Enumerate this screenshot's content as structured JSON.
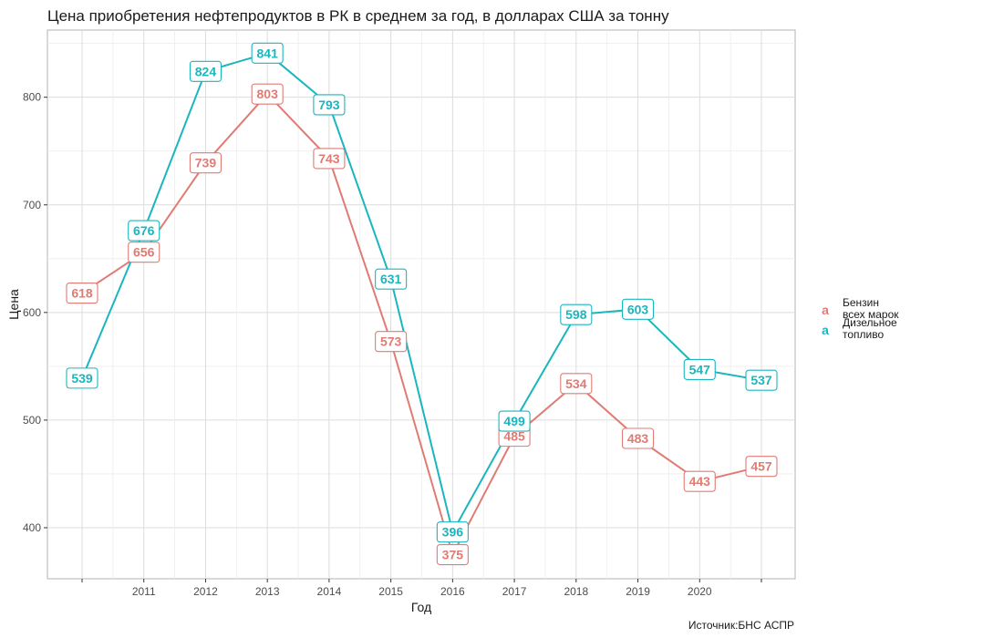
{
  "chart_data": {
    "type": "line",
    "title": "Цена приобретения нефтепродуктов в РК в среднем за год, в долларах США за тонну",
    "xlabel": "Год",
    "ylabel": "Цена",
    "caption": "Источник:БНС АСПР",
    "x": [
      2010,
      2011,
      2012,
      2013,
      2014,
      2015,
      2016,
      2017,
      2018,
      2019,
      2020,
      2021
    ],
    "x_tick_labels": [
      "2011",
      "2012",
      "2013",
      "2014",
      "2015",
      "2016",
      "2017",
      "2018",
      "2019",
      "2020"
    ],
    "y_ticks": [
      400,
      500,
      600,
      700,
      800
    ],
    "ylim": [
      350,
      850
    ],
    "grid": true,
    "legend_position": "right",
    "series": [
      {
        "name": "Бензин всех марок",
        "legend_lines": [
          "Бензин",
          "всех марок"
        ],
        "color": "#E07B73",
        "values": [
          618,
          656,
          739,
          803,
          743,
          573,
          375,
          485,
          534,
          483,
          443,
          457
        ]
      },
      {
        "name": "Дизельное топливо",
        "legend_lines": [
          "Дизельное",
          "топливо"
        ],
        "color": "#1AB6BE",
        "values": [
          539,
          676,
          824,
          841,
          793,
          631,
          396,
          499,
          598,
          603,
          547,
          537
        ]
      }
    ],
    "legend_key_glyph": "a"
  }
}
